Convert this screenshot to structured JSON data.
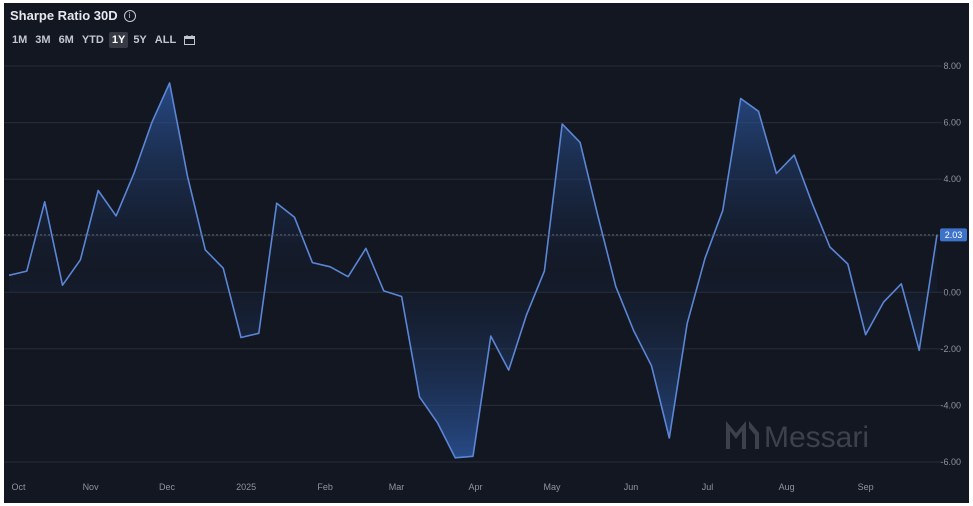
{
  "title": "Sharpe Ratio 30D",
  "info_icon": "info-icon",
  "calendar_icon": "calendar-icon",
  "time_ranges": [
    "1M",
    "3M",
    "6M",
    "YTD",
    "1Y",
    "5Y",
    "ALL"
  ],
  "active_range": "1Y",
  "watermark": "Messari",
  "colors": {
    "line": "#5b86d6",
    "background": "#131722",
    "badge": "#3e73cc",
    "grid": "#2a2e39"
  },
  "chart_data": {
    "type": "area",
    "title": "Sharpe Ratio 30D",
    "xlabel": "",
    "ylabel": "",
    "ylim": [
      -6.5,
      8.5
    ],
    "y_ticks": [
      "8.00",
      "6.00",
      "4.00",
      "2.00",
      "0.00",
      "-2.00",
      "-4.00",
      "-6.00"
    ],
    "y_tick_values": [
      8,
      6,
      4,
      2,
      0,
      -2,
      -4,
      -6
    ],
    "x_tick_labels": [
      "Oct",
      "Nov",
      "Dec",
      "2025",
      "Feb",
      "Mar",
      "Apr",
      "May",
      "Jun",
      "Jul",
      "Aug",
      "Sep"
    ],
    "x_tick_dates": [
      "2024-10-01",
      "2024-11-01",
      "2024-12-01",
      "2025-01-01",
      "2025-02-01",
      "2025-03-01",
      "2025-04-01",
      "2025-05-01",
      "2025-06-01",
      "2025-07-01",
      "2025-08-01",
      "2025-09-01"
    ],
    "current_value": "2.03",
    "grid": true,
    "series": [
      {
        "x": [
          "2024-09-30",
          "2024-10-07",
          "2024-10-14",
          "2024-10-21",
          "2024-10-28",
          "2024-11-04",
          "2024-11-11",
          "2024-11-18",
          "2024-11-25",
          "2024-12-02",
          "2024-12-09",
          "2024-12-16",
          "2024-12-23",
          "2024-12-30",
          "2025-01-06",
          "2025-01-13",
          "2025-01-20",
          "2025-01-27",
          "2025-02-03",
          "2025-02-10",
          "2025-02-17",
          "2025-02-24",
          "2025-03-03",
          "2025-03-10",
          "2025-03-17",
          "2025-03-24",
          "2025-03-31",
          "2025-04-07",
          "2025-04-14",
          "2025-04-21",
          "2025-04-28",
          "2025-05-05",
          "2025-05-12",
          "2025-05-19",
          "2025-05-26",
          "2025-06-02",
          "2025-06-09",
          "2025-06-16",
          "2025-06-23",
          "2025-06-30",
          "2025-07-07",
          "2025-07-14",
          "2025-07-21",
          "2025-07-28",
          "2025-08-04",
          "2025-08-11",
          "2025-08-18",
          "2025-08-25",
          "2025-09-01",
          "2025-09-08",
          "2025-09-15",
          "2025-09-22",
          "2025-09-29"
        ],
        "values": [
          0.6,
          0.75,
          3.2,
          0.25,
          1.15,
          3.6,
          2.7,
          4.2,
          6.0,
          7.4,
          4.1,
          1.5,
          0.85,
          -1.6,
          -1.45,
          3.15,
          2.65,
          1.05,
          0.9,
          0.55,
          1.55,
          0.05,
          -0.15,
          -3.7,
          -4.6,
          -5.85,
          -5.8,
          -1.55,
          -2.75,
          -0.8,
          0.75,
          5.95,
          5.3,
          2.7,
          0.2,
          -1.35,
          -2.6,
          -5.15,
          -1.1,
          1.2,
          2.9,
          6.85,
          6.4,
          4.2,
          4.85,
          3.15,
          1.6,
          1.0,
          -1.5,
          -0.35,
          0.3,
          -2.05,
          2.03
        ]
      }
    ]
  }
}
